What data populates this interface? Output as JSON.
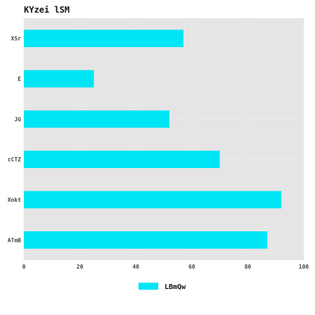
{
  "chart_data": {
    "type": "bar",
    "orientation": "horizontal",
    "title": "KYzei lSM",
    "xlabel": "",
    "ylabel": "",
    "xlim": [
      0,
      100
    ],
    "xticks": [
      0,
      20,
      40,
      60,
      80,
      100
    ],
    "grid": true,
    "legend_position": "bottom",
    "categories": [
      "XSr",
      "E",
      "JG",
      "cCTZ",
      "Xnkt",
      "ATmB"
    ],
    "series": [
      {
        "name": "LBmQw",
        "color": "#00e5f5",
        "values": [
          57,
          25,
          52,
          70,
          92,
          87
        ]
      }
    ]
  }
}
